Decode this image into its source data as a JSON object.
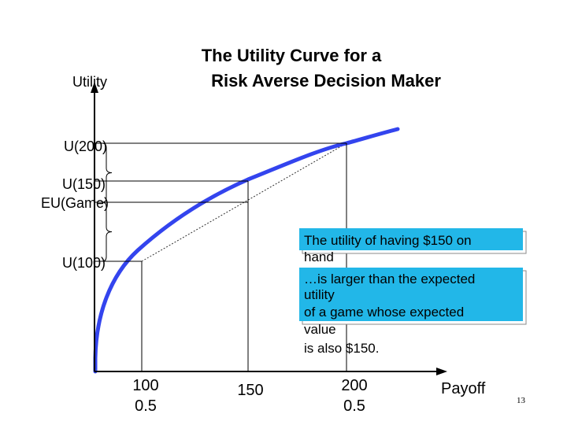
{
  "chart_data": {
    "type": "line",
    "title_lines": [
      "The Utility Curve for a",
      "Risk Averse Decision Maker"
    ],
    "ylabel": "Utility",
    "xlabel": "Payoff",
    "xlim": [
      0,
      240
    ],
    "y_tick_labels": [
      {
        "label": "U(200)",
        "utility": 1.0
      },
      {
        "label": "U(150)",
        "utility": 0.87
      },
      {
        "label": "EU(Game)",
        "utility": 0.5
      },
      {
        "label": "U(100)",
        "utility": 0.0
      }
    ],
    "x_ticks": [
      {
        "value": 100,
        "label": "100",
        "prob": "0.5"
      },
      {
        "value": 150,
        "label": "150",
        "prob": ""
      },
      {
        "value": 200,
        "label": "200",
        "prob": "0.5"
      }
    ],
    "series": [
      {
        "type": "curve",
        "color": "#3344ee",
        "points": [
          [
            0,
            -2.1
          ],
          [
            10,
            -1.55
          ],
          [
            20,
            -1.2
          ],
          [
            30,
            -0.93
          ],
          [
            40,
            -0.72
          ],
          [
            50,
            -0.55
          ],
          [
            60,
            -0.4
          ],
          [
            70,
            -0.28
          ],
          [
            80,
            -0.17
          ],
          [
            90,
            -0.08
          ],
          [
            100,
            0.0
          ],
          [
            110,
            0.1
          ],
          [
            120,
            0.2
          ],
          [
            130,
            0.34
          ],
          [
            140,
            0.46
          ],
          [
            150,
            0.87
          ],
          [
            160,
            0.9
          ],
          [
            170,
            0.93
          ],
          [
            180,
            0.96
          ],
          [
            190,
            0.98
          ],
          [
            200,
            1.0
          ],
          [
            210,
            1.02
          ],
          [
            220,
            1.04
          ]
        ]
      },
      {
        "type": "chord",
        "color": "#333333",
        "from": [
          100,
          0.0
        ],
        "to": [
          200,
          1.0
        ]
      }
    ],
    "annotations": [
      "The utility of having $150 on hand",
      "…is larger than the expected utility",
      "of a game whose expected value",
      "is also $150."
    ]
  },
  "page_number": "13"
}
